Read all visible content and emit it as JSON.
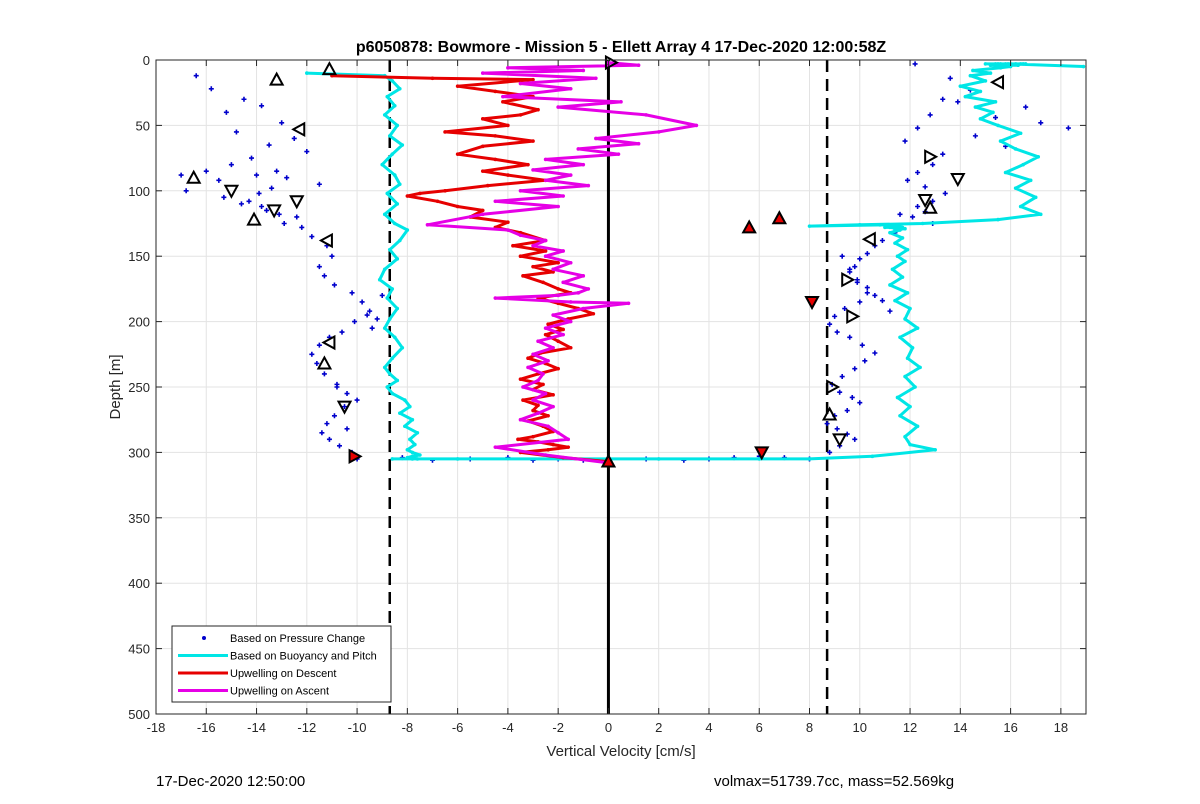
{
  "footer": {
    "timestamp": "17-Dec-2020 12:50:00",
    "stats": "volmax=51739.7cc, mass=52.569kg"
  },
  "chart_data": {
    "type": "line",
    "title": "p6050878: Bowmore - Mission 5 - Ellett Array 4 17-Dec-2020 12:00:58Z",
    "xlabel": "Vertical Velocity [cm/s]",
    "ylabel": "Depth [m]",
    "xlim": [
      -18,
      19
    ],
    "ylim": [
      0,
      500
    ],
    "y_reversed": true,
    "xticks": [
      -18,
      -16,
      -14,
      -12,
      -10,
      -8,
      -6,
      -4,
      -2,
      0,
      2,
      4,
      6,
      8,
      10,
      12,
      14,
      16,
      18
    ],
    "yticks": [
      0,
      50,
      100,
      150,
      200,
      250,
      300,
      350,
      400,
      450,
      500
    ],
    "grid": true,
    "legend_location": "bottom-left",
    "reference_lines": [
      {
        "style": "solid",
        "x": 0
      },
      {
        "style": "dashed",
        "x": -8.7
      },
      {
        "style": "dashed",
        "x": 8.7
      }
    ],
    "series": [
      {
        "name": "Based on Pressure Change",
        "style": "points",
        "color": "#0000cc",
        "segments": [
          {
            "x": [
              -16.4,
              -15.8,
              -14.5,
              -15.2,
              -13.8,
              -13.0,
              -14.8,
              -12.5,
              -13.5,
              -12.0,
              -14.2,
              -15.0,
              -13.2,
              -12.8,
              -11.5,
              -14.0,
              -15.5,
              -16.0,
              -17.0,
              -16.8,
              -15.3,
              -14.6,
              -13.8,
              -13.1,
              -12.4,
              -12.9,
              -13.6,
              -14.3,
              -13.9,
              -13.4,
              -12.2,
              -11.8,
              -11.2,
              -11.0,
              -11.5,
              -11.3,
              -10.9,
              -10.2,
              -9.8,
              -9.5,
              -9.2,
              -9.4,
              -9.0,
              -9.6,
              -10.1,
              -10.6,
              -11.1,
              -11.5,
              -11.8,
              -11.6,
              -11.3,
              -10.8,
              -10.4,
              -10.0,
              -10.5,
              -10.9,
              -11.2,
              -11.4,
              -11.1,
              -10.7,
              -10.2,
              -10.0,
              -10.4,
              -10.8
            ],
            "y": [
              12,
              22,
              30,
              40,
              35,
              48,
              55,
              60,
              65,
              70,
              75,
              80,
              85,
              90,
              95,
              88,
              92,
              85,
              88,
              100,
              105,
              110,
              112,
              118,
              120,
              125,
              115,
              108,
              102,
              98,
              128,
              135,
              142,
              150,
              158,
              165,
              172,
              178,
              185,
              192,
              198,
              205,
              180,
              195,
              200,
              208,
              212,
              218,
              225,
              232,
              240,
              248,
              255,
              260,
              265,
              272,
              278,
              285,
              290,
              295,
              300,
              305,
              282,
              250
            ]
          },
          {
            "x": [
              12.2,
              13.6,
              14.4,
              13.3,
              12.8,
              12.3,
              11.8,
              13.3,
              14.6,
              15.8,
              17.2,
              18.3,
              16.6,
              15.4,
              13.9,
              12.9,
              12.3,
              11.9,
              12.6,
              13.4,
              12.9,
              12.3,
              11.6,
              12.1,
              12.6,
              12.9,
              11.4,
              10.9,
              10.6,
              10.3,
              10.0,
              9.8,
              9.6,
              9.9,
              10.3,
              10.6,
              10.0,
              9.4,
              9.0,
              8.8,
              9.1,
              9.6,
              10.1,
              10.6,
              10.2,
              9.8,
              9.3,
              8.9,
              9.2,
              9.7,
              10.0,
              9.5,
              9.0,
              8.7,
              9.1,
              9.5,
              9.8,
              9.2,
              8.8,
              9.3,
              9.6,
              9.9,
              10.3,
              10.9,
              11.2
            ],
            "y": [
              3,
              14,
              23,
              30,
              42,
              52,
              62,
              72,
              58,
              66,
              48,
              52,
              36,
              44,
              32,
              80,
              86,
              92,
              97,
              102,
              108,
              112,
              118,
              120,
              116,
              125,
              132,
              138,
              142,
              148,
              152,
              158,
              162,
              168,
              174,
              180,
              185,
              190,
              196,
              202,
              208,
              212,
              218,
              224,
              230,
              236,
              242,
              248,
              254,
              258,
              262,
              268,
              272,
              278,
              282,
              286,
              290,
              295,
              300,
              150,
              160,
              170,
              178,
              184,
              192
            ]
          },
          {
            "x": [
              -8.2,
              -7.0,
              -5.5,
              -4.0,
              -3.0,
              -2.0,
              -1.0,
              0.0,
              1.5,
              3.0,
              4.0,
              5.0,
              6.0,
              7.0,
              8.0
            ],
            "y": [
              304,
              306,
              305,
              304,
              306,
              305,
              306,
              306,
              305,
              306,
              305,
              304,
              303,
              304,
              305
            ]
          }
        ]
      },
      {
        "name": "Based on Buoyancy and Pitch",
        "style": "line",
        "color": "#00e6e6",
        "x": [
          -12.0,
          -8.9,
          -8.6,
          -8.3,
          -8.8,
          -8.5,
          -8.9,
          -8.4,
          -8.7,
          -8.2,
          -8.6,
          -9.0,
          -8.5,
          -8.3,
          -8.8,
          -8.4,
          -8.9,
          -8.5,
          -8.0,
          -8.3,
          -8.7,
          -8.4,
          -8.9,
          -9.1,
          -8.6,
          -8.8,
          -8.4,
          -8.7,
          -8.9,
          -8.5,
          -8.2,
          -8.6,
          -8.9,
          -8.7,
          -8.4,
          -8.8,
          -8.6,
          -8.1,
          -7.9,
          -8.3,
          -7.8,
          -8.1,
          -7.6,
          -7.9,
          -7.7,
          -8.0,
          -7.8,
          -7.5,
          -7.8,
          -8.0,
          -7.7,
          -7.9,
          -7.6,
          -7.8,
          -8.6,
          -6.0,
          -2.0,
          2.0,
          6.0,
          8.0,
          10.5,
          13.0,
          12.0,
          11.8,
          12.3,
          11.6,
          12.0,
          11.5,
          12.2,
          11.8,
          12.4,
          11.9,
          12.1,
          11.6,
          12.3,
          11.8,
          12.0,
          11.4,
          11.9,
          11.2,
          11.7,
          11.3,
          11.8,
          11.5,
          11.9,
          11.4,
          11.7,
          11.2,
          11.6,
          11.4,
          11.8,
          11.5,
          11.2,
          11.7,
          11.4,
          11.0,
          11.6,
          11.3,
          11.1,
          11.5,
          11.2,
          10.8,
          11.4,
          11.1,
          10.8,
          11.2,
          8.0,
          10.0,
          12.5,
          15.5,
          17.2,
          16.4,
          17.0,
          16.2,
          16.8,
          15.8,
          16.5,
          17.1,
          16.2,
          15.6,
          16.4,
          15.5,
          14.8,
          15.3,
          14.6,
          15.4,
          14.2,
          14.8,
          14.0,
          15.0,
          14.4,
          15.2,
          14.5,
          15.6,
          16.0,
          15.2,
          16.3,
          15.5,
          16.4,
          15.6,
          16.0,
          15.0,
          16.2,
          15.4,
          16.5,
          15.8,
          16.6,
          15.9,
          18.9
        ],
        "y": [
          10,
          12,
          16,
          22,
          28,
          35,
          42,
          50,
          58,
          65,
          72,
          80,
          88,
          95,
          102,
          110,
          118,
          125,
          130,
          138,
          145,
          152,
          160,
          168,
          175,
          182,
          190,
          198,
          205,
          212,
          220,
          228,
          235,
          240,
          245,
          250,
          255,
          260,
          265,
          270,
          275,
          280,
          285,
          290,
          294,
          298,
          300,
          302,
          303,
          304,
          304,
          304,
          305,
          305,
          305,
          305,
          305,
          305,
          305,
          305,
          303,
          298,
          294,
          288,
          280,
          272,
          265,
          258,
          250,
          242,
          235,
          228,
          220,
          212,
          205,
          198,
          190,
          184,
          178,
          172,
          166,
          160,
          154,
          150,
          145,
          140,
          136,
          132,
          130,
          130,
          129,
          129,
          128,
          128,
          128,
          128,
          127,
          127,
          127,
          127,
          126,
          126,
          126,
          126,
          126,
          126,
          127,
          126,
          125,
          122,
          118,
          112,
          105,
          98,
          92,
          86,
          80,
          74,
          68,
          62,
          56,
          50,
          45,
          40,
          36,
          32,
          28,
          24,
          20,
          16,
          12,
          10,
          8,
          6,
          5,
          4,
          4,
          3,
          3,
          3,
          3,
          3,
          3,
          3,
          3,
          3,
          3,
          3,
          5
        ]
      },
      {
        "name": "Upwelling on Descent",
        "style": "line",
        "color": "#e60000",
        "x": [
          -11.0,
          -7.0,
          -3.0,
          -6.0,
          -4.5,
          -3.0,
          -4.2,
          -2.8,
          -3.5,
          -5.0,
          -4.0,
          -6.5,
          -4.5,
          -3.0,
          -5.0,
          -6.0,
          -4.5,
          -3.2,
          -5.0,
          -4.0,
          -2.5,
          -4.8,
          -6.5,
          -7.5,
          -8.0,
          -6.8,
          -6.0,
          -5.0,
          -5.5,
          -4.0,
          -4.5,
          -3.5,
          -2.5,
          -3.8,
          -2.5,
          -3.5,
          -2.0,
          -3.0,
          -2.2,
          -3.4,
          -2.6,
          -2.0,
          -1.5,
          -2.8,
          -2.0,
          -1.2,
          -0.6,
          -1.6,
          -2.4,
          -1.8,
          -2.5,
          -2.0,
          -1.5,
          -2.7,
          -3.2,
          -2.5,
          -2.0,
          -2.8,
          -3.5,
          -2.6,
          -3.0,
          -2.2,
          -3.4,
          -2.8,
          -3.0,
          -2.4,
          -3.2,
          -2.6,
          -2.2,
          -3.0,
          -3.6,
          -2.8,
          -2.2,
          -1.6,
          -2.4,
          -3.5,
          -1.8,
          0.0
        ],
        "y": [
          12,
          14,
          15,
          20,
          24,
          28,
          32,
          38,
          42,
          45,
          50,
          55,
          58,
          62,
          66,
          72,
          76,
          80,
          85,
          88,
          92,
          96,
          100,
          102,
          104,
          108,
          112,
          115,
          120,
          124,
          128,
          132,
          138,
          142,
          146,
          150,
          155,
          158,
          162,
          165,
          170,
          175,
          178,
          182,
          186,
          190,
          194,
          198,
          202,
          206,
          210,
          215,
          220,
          224,
          228,
          232,
          236,
          240,
          244,
          248,
          252,
          256,
          260,
          264,
          268,
          272,
          276,
          280,
          284,
          288,
          290,
          292,
          294,
          296,
          298,
          300,
          304,
          307
        ]
      },
      {
        "name": "Upwelling on Ascent",
        "style": "line",
        "color": "#e600e6",
        "x": [
          0.0,
          1.2,
          -4.0,
          -1.0,
          -5.0,
          -0.5,
          -3.5,
          -1.5,
          -4.2,
          0.5,
          -2.0,
          1.5,
          3.5,
          2.0,
          -0.5,
          1.2,
          -1.2,
          0.4,
          -2.5,
          -1.0,
          -3.0,
          -1.5,
          -2.5,
          -0.8,
          -3.5,
          -1.8,
          -4.5,
          -2.0,
          -5.0,
          -7.2,
          -4.0,
          -3.5,
          -2.5,
          -3.0,
          -1.8,
          -2.5,
          -1.5,
          -2.2,
          -1.0,
          -1.8,
          -0.8,
          -1.2,
          -2.0,
          -4.5,
          -1.5,
          0.8,
          -1.0,
          -2.2,
          -1.5,
          -2.5,
          -1.8,
          -2.8,
          -2.2,
          -3.0,
          -2.4,
          -3.2,
          -2.6,
          -2.8,
          -3.4,
          -2.5,
          -3.0,
          -2.2,
          -2.8,
          -3.5,
          -2.4,
          -2.0,
          -1.6,
          -4.5,
          -2.5,
          0.0
        ],
        "y": [
          2,
          4,
          6,
          8,
          10,
          14,
          18,
          22,
          28,
          32,
          36,
          42,
          50,
          55,
          60,
          64,
          68,
          72,
          76,
          80,
          84,
          88,
          92,
          96,
          100,
          104,
          108,
          112,
          118,
          126,
          130,
          134,
          138,
          142,
          146,
          150,
          155,
          160,
          165,
          170,
          175,
          178,
          180,
          182,
          185,
          186,
          190,
          195,
          200,
          205,
          210,
          215,
          220,
          225,
          230,
          235,
          240,
          245,
          250,
          255,
          260,
          265,
          270,
          275,
          280,
          285,
          290,
          296,
          302,
          308
        ]
      }
    ],
    "markers": [
      {
        "dir": "up",
        "x": -13.2,
        "y": 15,
        "fill": "none"
      },
      {
        "dir": "up",
        "x": -11.1,
        "y": 7,
        "fill": "none"
      },
      {
        "dir": "left",
        "x": -12.3,
        "y": 53,
        "fill": "none"
      },
      {
        "dir": "up",
        "x": -16.5,
        "y": 90,
        "fill": "none"
      },
      {
        "dir": "down",
        "x": -15.0,
        "y": 100,
        "fill": "none"
      },
      {
        "dir": "down",
        "x": -12.4,
        "y": 108,
        "fill": "none"
      },
      {
        "dir": "down",
        "x": -13.3,
        "y": 115,
        "fill": "none"
      },
      {
        "dir": "up",
        "x": -14.1,
        "y": 122,
        "fill": "none"
      },
      {
        "dir": "left",
        "x": -11.2,
        "y": 138,
        "fill": "none"
      },
      {
        "dir": "left",
        "x": -11.1,
        "y": 216,
        "fill": "none"
      },
      {
        "dir": "up",
        "x": -11.3,
        "y": 232,
        "fill": "none"
      },
      {
        "dir": "down",
        "x": -10.5,
        "y": 265,
        "fill": "none"
      },
      {
        "dir": "right",
        "x": -10.1,
        "y": 303,
        "fill": "#e60000"
      },
      {
        "dir": "right",
        "x": 0.1,
        "y": 2,
        "fill": "none"
      },
      {
        "dir": "up",
        "x": 0.0,
        "y": 307,
        "fill": "#e60000"
      },
      {
        "dir": "up",
        "x": 5.6,
        "y": 128,
        "fill": "#e60000"
      },
      {
        "dir": "up",
        "x": 6.8,
        "y": 121,
        "fill": "#e60000"
      },
      {
        "dir": "down",
        "x": 6.1,
        "y": 300,
        "fill": "#e60000"
      },
      {
        "dir": "down",
        "x": 8.1,
        "y": 185,
        "fill": "#e60000"
      },
      {
        "dir": "left",
        "x": 15.5,
        "y": 17,
        "fill": "none"
      },
      {
        "dir": "right",
        "x": 12.8,
        "y": 74,
        "fill": "none"
      },
      {
        "dir": "down",
        "x": 13.9,
        "y": 91,
        "fill": "none"
      },
      {
        "dir": "down",
        "x": 12.6,
        "y": 107,
        "fill": "none"
      },
      {
        "dir": "up",
        "x": 12.8,
        "y": 113,
        "fill": "none"
      },
      {
        "dir": "left",
        "x": 10.4,
        "y": 137,
        "fill": "none"
      },
      {
        "dir": "right",
        "x": 9.5,
        "y": 168,
        "fill": "none"
      },
      {
        "dir": "right",
        "x": 9.7,
        "y": 196,
        "fill": "none"
      },
      {
        "dir": "right",
        "x": 8.9,
        "y": 250,
        "fill": "none"
      },
      {
        "dir": "up",
        "x": 8.8,
        "y": 271,
        "fill": "none"
      },
      {
        "dir": "down",
        "x": 9.2,
        "y": 290,
        "fill": "none"
      }
    ]
  }
}
